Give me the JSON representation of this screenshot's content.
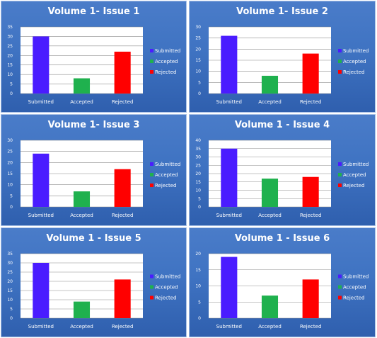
{
  "chart_data": [
    {
      "type": "bar",
      "title": "Volume 1- Issue 1",
      "categories": [
        "Submitted",
        "Accepted",
        "Rejected"
      ],
      "values": [
        30,
        8,
        22
      ],
      "ylim": [
        0,
        35
      ],
      "yticks": [
        0,
        5,
        10,
        15,
        20,
        25,
        30,
        35
      ],
      "colors": [
        "#4a1cff",
        "#1fb14e",
        "#ff0000"
      ],
      "legend": [
        "Submitted",
        "Accepted",
        "Rejected"
      ],
      "legend_position": "right",
      "grid": true
    },
    {
      "type": "bar",
      "title": "Volume 1- Issue 2",
      "categories": [
        "Submitted",
        "Accepted",
        "Rejected"
      ],
      "values": [
        26,
        8,
        18
      ],
      "ylim": [
        0,
        30
      ],
      "yticks": [
        0,
        5,
        10,
        15,
        20,
        25,
        30
      ],
      "colors": [
        "#4a1cff",
        "#1fb14e",
        "#ff0000"
      ],
      "legend": [
        "Submitted",
        "Accepted",
        "Rejected"
      ],
      "legend_position": "right",
      "grid": true
    },
    {
      "type": "bar",
      "title": "Volume 1- Issue 3",
      "categories": [
        "Submitted",
        "Accepted",
        "Rejected"
      ],
      "values": [
        24,
        7,
        17
      ],
      "ylim": [
        0,
        30
      ],
      "yticks": [
        0,
        5,
        10,
        15,
        20,
        25,
        30
      ],
      "colors": [
        "#4a1cff",
        "#1fb14e",
        "#ff0000"
      ],
      "legend": [
        "Submitted",
        "Accepted",
        "Rejected"
      ],
      "legend_position": "right",
      "grid": true
    },
    {
      "type": "bar",
      "title": "Volume 1 - Issue 4",
      "categories": [
        "Submitted",
        "Accepted",
        "Rejected"
      ],
      "values": [
        35,
        17,
        18
      ],
      "ylim": [
        0,
        40
      ],
      "yticks": [
        0,
        5,
        10,
        15,
        20,
        25,
        30,
        35,
        40
      ],
      "colors": [
        "#4a1cff",
        "#1fb14e",
        "#ff0000"
      ],
      "legend": [
        "Submitted",
        "Accepted",
        "Rejected"
      ],
      "legend_position": "right",
      "grid": true
    },
    {
      "type": "bar",
      "title": "Volume 1 - Issue 5",
      "categories": [
        "Submitted",
        "Accepted",
        "Rejected"
      ],
      "values": [
        30,
        9,
        21
      ],
      "ylim": [
        0,
        35
      ],
      "yticks": [
        0,
        5,
        10,
        15,
        20,
        25,
        30,
        35
      ],
      "colors": [
        "#4a1cff",
        "#1fb14e",
        "#ff0000"
      ],
      "legend": [
        "Submitted",
        "Accepted",
        "Rejected"
      ],
      "legend_position": "right",
      "grid": true
    },
    {
      "type": "bar",
      "title": "Volume 1 - Issue 6",
      "categories": [
        "Submitted",
        "Accepted",
        "Rejected"
      ],
      "values": [
        19,
        7,
        12
      ],
      "ylim": [
        0,
        20
      ],
      "yticks": [
        0,
        5,
        10,
        15,
        20
      ],
      "colors": [
        "#4a1cff",
        "#1fb14e",
        "#ff0000"
      ],
      "legend": [
        "Submitted",
        "Accepted",
        "Rejected"
      ],
      "legend_position": "right",
      "grid": true
    }
  ]
}
